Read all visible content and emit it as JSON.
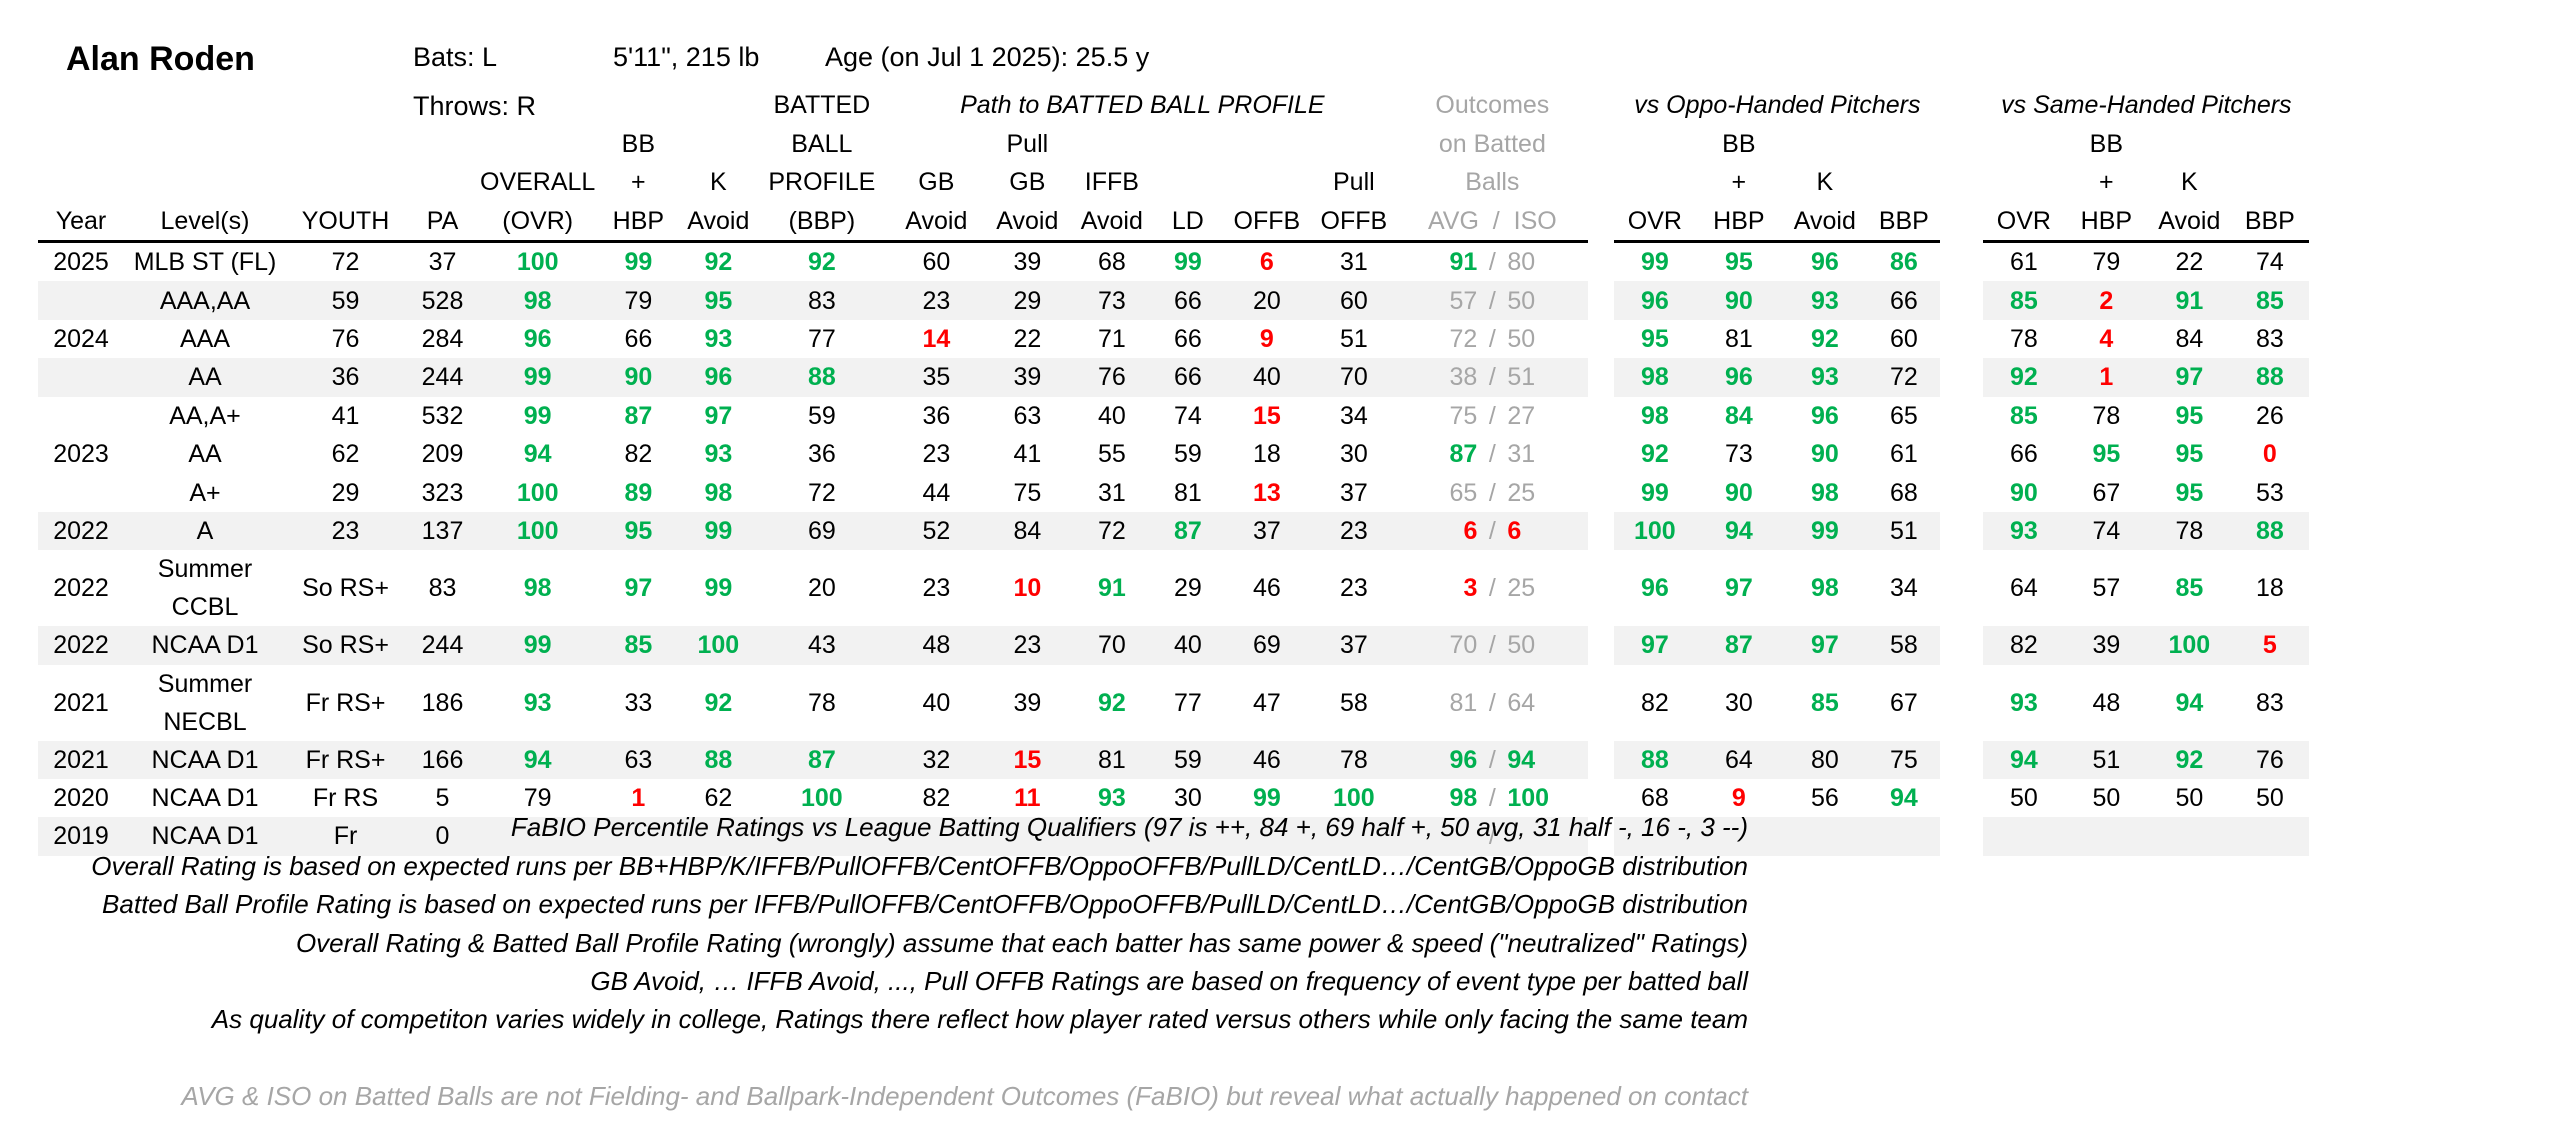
{
  "player": {
    "name": "Alan Roden",
    "bats": "Bats: L",
    "throws": "Throws: R",
    "height_weight": "5'11\", 215 lb",
    "age": "Age (on Jul 1 2025): 25.5 y"
  },
  "group_headers": {
    "path": "Path to BATTED BALL PROFILE",
    "outcomes_1": "Outcomes",
    "outcomes_2": "on Batted",
    "outcomes_3": "Balls",
    "oppo": "vs Oppo-Handed Pitchers",
    "same": "vs Same-Handed Pitchers"
  },
  "column_headers": {
    "year": "Year",
    "levels": "Level(s)",
    "youth": "YOUTH",
    "pa": "PA",
    "overall_1": "OVERALL",
    "overall_2": "(OVR)",
    "bb_1": "BB",
    "bb_2": "+",
    "bb_3": "HBP",
    "k_1": "K",
    "k_2": "Avoid",
    "bbp_1": "BATTED",
    "bbp_2": "BALL",
    "bbp_3": "PROFILE",
    "bbp_4": "(BBP)",
    "gb_1": "GB",
    "gb_2": "Avoid",
    "pullgb_1": "Pull",
    "pullgb_2": "GB",
    "pullgb_3": "Avoid",
    "iffb_1": "IFFB",
    "iffb_2": "Avoid",
    "ld": "LD",
    "offb": "OFFB",
    "pulloffb_1": "Pull",
    "pulloffb_2": "OFFB",
    "avgiso": "AVG  /  ISO",
    "ovr": "OVR",
    "hbp": "HBP",
    "kavoid": "Avoid",
    "bbp": "BBP"
  },
  "rows": [
    {
      "year": "2025",
      "level": "MLB ST (FL)",
      "youth": "72",
      "pa": "37",
      "ovr": [
        "100",
        "g"
      ],
      "bb": [
        "99",
        "g"
      ],
      "k": [
        "92",
        "g"
      ],
      "bbp": [
        "92",
        "g"
      ],
      "gb": [
        "60",
        "n"
      ],
      "pgb": [
        "39",
        "n"
      ],
      "iffb": [
        "68",
        "n"
      ],
      "ld": [
        "99",
        "g"
      ],
      "offb": [
        "6",
        "r"
      ],
      "poffb": [
        "31",
        "n"
      ],
      "avg": [
        "91",
        "g"
      ],
      "iso": [
        "80",
        "gr"
      ],
      "o": [
        [
          "99",
          "g"
        ],
        [
          "95",
          "g"
        ],
        [
          "96",
          "g"
        ],
        [
          "86",
          "g"
        ]
      ],
      "s": [
        [
          "61",
          "n"
        ],
        [
          "79",
          "n"
        ],
        [
          "22",
          "n"
        ],
        [
          "74",
          "n"
        ]
      ],
      "shade": false
    },
    {
      "year": "",
      "level": "AAA,AA",
      "youth": "59",
      "pa": "528",
      "ovr": [
        "98",
        "g"
      ],
      "bb": [
        "79",
        "n"
      ],
      "k": [
        "95",
        "g"
      ],
      "bbp": [
        "83",
        "n"
      ],
      "gb": [
        "23",
        "n"
      ],
      "pgb": [
        "29",
        "n"
      ],
      "iffb": [
        "73",
        "n"
      ],
      "ld": [
        "66",
        "n"
      ],
      "offb": [
        "20",
        "n"
      ],
      "poffb": [
        "60",
        "n"
      ],
      "avg": [
        "57",
        "gr"
      ],
      "iso": [
        "50",
        "gr"
      ],
      "o": [
        [
          "96",
          "g"
        ],
        [
          "90",
          "g"
        ],
        [
          "93",
          "g"
        ],
        [
          "66",
          "n"
        ]
      ],
      "s": [
        [
          "85",
          "g"
        ],
        [
          "2",
          "r"
        ],
        [
          "91",
          "g"
        ],
        [
          "85",
          "g"
        ]
      ],
      "shade": true
    },
    {
      "year": "2024",
      "level": "AAA",
      "youth": "76",
      "pa": "284",
      "ovr": [
        "96",
        "g"
      ],
      "bb": [
        "66",
        "n"
      ],
      "k": [
        "93",
        "g"
      ],
      "bbp": [
        "77",
        "n"
      ],
      "gb": [
        "14",
        "r"
      ],
      "pgb": [
        "22",
        "n"
      ],
      "iffb": [
        "71",
        "n"
      ],
      "ld": [
        "66",
        "n"
      ],
      "offb": [
        "9",
        "r"
      ],
      "poffb": [
        "51",
        "n"
      ],
      "avg": [
        "72",
        "gr"
      ],
      "iso": [
        "50",
        "gr"
      ],
      "o": [
        [
          "95",
          "g"
        ],
        [
          "81",
          "n"
        ],
        [
          "92",
          "g"
        ],
        [
          "60",
          "n"
        ]
      ],
      "s": [
        [
          "78",
          "n"
        ],
        [
          "4",
          "r"
        ],
        [
          "84",
          "n"
        ],
        [
          "83",
          "n"
        ]
      ],
      "shade": false
    },
    {
      "year": "",
      "level": "AA",
      "youth": "36",
      "pa": "244",
      "ovr": [
        "99",
        "g"
      ],
      "bb": [
        "90",
        "g"
      ],
      "k": [
        "96",
        "g"
      ],
      "bbp": [
        "88",
        "g"
      ],
      "gb": [
        "35",
        "n"
      ],
      "pgb": [
        "39",
        "n"
      ],
      "iffb": [
        "76",
        "n"
      ],
      "ld": [
        "66",
        "n"
      ],
      "offb": [
        "40",
        "n"
      ],
      "poffb": [
        "70",
        "n"
      ],
      "avg": [
        "38",
        "gr"
      ],
      "iso": [
        "51",
        "gr"
      ],
      "o": [
        [
          "98",
          "g"
        ],
        [
          "96",
          "g"
        ],
        [
          "93",
          "g"
        ],
        [
          "72",
          "n"
        ]
      ],
      "s": [
        [
          "92",
          "g"
        ],
        [
          "1",
          "r"
        ],
        [
          "97",
          "g"
        ],
        [
          "88",
          "g"
        ]
      ],
      "shade": true
    },
    {
      "year": "",
      "level": "AA,A+",
      "youth": "41",
      "pa": "532",
      "ovr": [
        "99",
        "g"
      ],
      "bb": [
        "87",
        "g"
      ],
      "k": [
        "97",
        "g"
      ],
      "bbp": [
        "59",
        "n"
      ],
      "gb": [
        "36",
        "n"
      ],
      "pgb": [
        "63",
        "n"
      ],
      "iffb": [
        "40",
        "n"
      ],
      "ld": [
        "74",
        "n"
      ],
      "offb": [
        "15",
        "r"
      ],
      "poffb": [
        "34",
        "n"
      ],
      "avg": [
        "75",
        "gr"
      ],
      "iso": [
        "27",
        "gr"
      ],
      "o": [
        [
          "98",
          "g"
        ],
        [
          "84",
          "g"
        ],
        [
          "96",
          "g"
        ],
        [
          "65",
          "n"
        ]
      ],
      "s": [
        [
          "85",
          "g"
        ],
        [
          "78",
          "n"
        ],
        [
          "95",
          "g"
        ],
        [
          "26",
          "n"
        ]
      ],
      "shade": false
    },
    {
      "year": "2023",
      "level": "AA",
      "youth": "62",
      "pa": "209",
      "ovr": [
        "94",
        "g"
      ],
      "bb": [
        "82",
        "n"
      ],
      "k": [
        "93",
        "g"
      ],
      "bbp": [
        "36",
        "n"
      ],
      "gb": [
        "23",
        "n"
      ],
      "pgb": [
        "41",
        "n"
      ],
      "iffb": [
        "55",
        "n"
      ],
      "ld": [
        "59",
        "n"
      ],
      "offb": [
        "18",
        "n"
      ],
      "poffb": [
        "30",
        "n"
      ],
      "avg": [
        "87",
        "g"
      ],
      "iso": [
        "31",
        "gr"
      ],
      "o": [
        [
          "92",
          "g"
        ],
        [
          "73",
          "n"
        ],
        [
          "90",
          "g"
        ],
        [
          "61",
          "n"
        ]
      ],
      "s": [
        [
          "66",
          "n"
        ],
        [
          "95",
          "g"
        ],
        [
          "95",
          "g"
        ],
        [
          "0",
          "r"
        ]
      ],
      "shade": false
    },
    {
      "year": "",
      "level": "A+",
      "youth": "29",
      "pa": "323",
      "ovr": [
        "100",
        "g"
      ],
      "bb": [
        "89",
        "g"
      ],
      "k": [
        "98",
        "g"
      ],
      "bbp": [
        "72",
        "n"
      ],
      "gb": [
        "44",
        "n"
      ],
      "pgb": [
        "75",
        "n"
      ],
      "iffb": [
        "31",
        "n"
      ],
      "ld": [
        "81",
        "n"
      ],
      "offb": [
        "13",
        "r"
      ],
      "poffb": [
        "37",
        "n"
      ],
      "avg": [
        "65",
        "gr"
      ],
      "iso": [
        "25",
        "gr"
      ],
      "o": [
        [
          "99",
          "g"
        ],
        [
          "90",
          "g"
        ],
        [
          "98",
          "g"
        ],
        [
          "68",
          "n"
        ]
      ],
      "s": [
        [
          "90",
          "g"
        ],
        [
          "67",
          "n"
        ],
        [
          "95",
          "g"
        ],
        [
          "53",
          "n"
        ]
      ],
      "shade": false
    },
    {
      "year": "2022",
      "level": "A",
      "youth": "23",
      "pa": "137",
      "ovr": [
        "100",
        "g"
      ],
      "bb": [
        "95",
        "g"
      ],
      "k": [
        "99",
        "g"
      ],
      "bbp": [
        "69",
        "n"
      ],
      "gb": [
        "52",
        "n"
      ],
      "pgb": [
        "84",
        "n"
      ],
      "iffb": [
        "72",
        "n"
      ],
      "ld": [
        "87",
        "g"
      ],
      "offb": [
        "37",
        "n"
      ],
      "poffb": [
        "23",
        "n"
      ],
      "avg": [
        "6",
        "r"
      ],
      "iso": [
        "6",
        "r"
      ],
      "o": [
        [
          "100",
          "g"
        ],
        [
          "94",
          "g"
        ],
        [
          "99",
          "g"
        ],
        [
          "51",
          "n"
        ]
      ],
      "s": [
        [
          "93",
          "g"
        ],
        [
          "74",
          "n"
        ],
        [
          "78",
          "n"
        ],
        [
          "88",
          "g"
        ]
      ],
      "shade": true
    },
    {
      "year": "2022",
      "level": "Summer CCBL",
      "youth": "So RS+",
      "pa": "83",
      "ovr": [
        "98",
        "g"
      ],
      "bb": [
        "97",
        "g"
      ],
      "k": [
        "99",
        "g"
      ],
      "bbp": [
        "20",
        "n"
      ],
      "gb": [
        "23",
        "n"
      ],
      "pgb": [
        "10",
        "r"
      ],
      "iffb": [
        "91",
        "g"
      ],
      "ld": [
        "29",
        "n"
      ],
      "offb": [
        "46",
        "n"
      ],
      "poffb": [
        "23",
        "n"
      ],
      "avg": [
        "3",
        "r"
      ],
      "iso": [
        "25",
        "gr"
      ],
      "o": [
        [
          "96",
          "g"
        ],
        [
          "97",
          "g"
        ],
        [
          "98",
          "g"
        ],
        [
          "34",
          "n"
        ]
      ],
      "s": [
        [
          "64",
          "n"
        ],
        [
          "57",
          "n"
        ],
        [
          "85",
          "g"
        ],
        [
          "18",
          "n"
        ]
      ],
      "shade": false
    },
    {
      "year": "2022",
      "level": "NCAA D1",
      "youth": "So RS+",
      "pa": "244",
      "ovr": [
        "99",
        "g"
      ],
      "bb": [
        "85",
        "g"
      ],
      "k": [
        "100",
        "g"
      ],
      "bbp": [
        "43",
        "n"
      ],
      "gb": [
        "48",
        "n"
      ],
      "pgb": [
        "23",
        "n"
      ],
      "iffb": [
        "70",
        "n"
      ],
      "ld": [
        "40",
        "n"
      ],
      "offb": [
        "69",
        "n"
      ],
      "poffb": [
        "37",
        "n"
      ],
      "avg": [
        "70",
        "gr"
      ],
      "iso": [
        "50",
        "gr"
      ],
      "o": [
        [
          "97",
          "g"
        ],
        [
          "87",
          "g"
        ],
        [
          "97",
          "g"
        ],
        [
          "58",
          "n"
        ]
      ],
      "s": [
        [
          "82",
          "n"
        ],
        [
          "39",
          "n"
        ],
        [
          "100",
          "g"
        ],
        [
          "5",
          "r"
        ]
      ],
      "shade": true
    },
    {
      "year": "2021",
      "level": "Summer NECBL",
      "youth": "Fr RS+",
      "pa": "186",
      "ovr": [
        "93",
        "g"
      ],
      "bb": [
        "33",
        "n"
      ],
      "k": [
        "92",
        "g"
      ],
      "bbp": [
        "78",
        "n"
      ],
      "gb": [
        "40",
        "n"
      ],
      "pgb": [
        "39",
        "n"
      ],
      "iffb": [
        "92",
        "g"
      ],
      "ld": [
        "77",
        "n"
      ],
      "offb": [
        "47",
        "n"
      ],
      "poffb": [
        "58",
        "n"
      ],
      "avg": [
        "81",
        "gr"
      ],
      "iso": [
        "64",
        "gr"
      ],
      "o": [
        [
          "82",
          "n"
        ],
        [
          "30",
          "n"
        ],
        [
          "85",
          "g"
        ],
        [
          "67",
          "n"
        ]
      ],
      "s": [
        [
          "93",
          "g"
        ],
        [
          "48",
          "n"
        ],
        [
          "94",
          "g"
        ],
        [
          "83",
          "n"
        ]
      ],
      "shade": false
    },
    {
      "year": "2021",
      "level": "NCAA D1",
      "youth": "Fr RS+",
      "pa": "166",
      "ovr": [
        "94",
        "g"
      ],
      "bb": [
        "63",
        "n"
      ],
      "k": [
        "88",
        "g"
      ],
      "bbp": [
        "87",
        "g"
      ],
      "gb": [
        "32",
        "n"
      ],
      "pgb": [
        "15",
        "r"
      ],
      "iffb": [
        "81",
        "n"
      ],
      "ld": [
        "59",
        "n"
      ],
      "offb": [
        "46",
        "n"
      ],
      "poffb": [
        "78",
        "n"
      ],
      "avg": [
        "96",
        "g"
      ],
      "iso": [
        "94",
        "g"
      ],
      "o": [
        [
          "88",
          "g"
        ],
        [
          "64",
          "n"
        ],
        [
          "80",
          "n"
        ],
        [
          "75",
          "n"
        ]
      ],
      "s": [
        [
          "94",
          "g"
        ],
        [
          "51",
          "n"
        ],
        [
          "92",
          "g"
        ],
        [
          "76",
          "n"
        ]
      ],
      "shade": true
    },
    {
      "year": "2020",
      "level": "NCAA D1",
      "youth": "Fr RS",
      "pa": "5",
      "ovr": [
        "79",
        "n"
      ],
      "bb": [
        "1",
        "r"
      ],
      "k": [
        "62",
        "n"
      ],
      "bbp": [
        "100",
        "g"
      ],
      "gb": [
        "82",
        "n"
      ],
      "pgb": [
        "11",
        "r"
      ],
      "iffb": [
        "93",
        "g"
      ],
      "ld": [
        "30",
        "n"
      ],
      "offb": [
        "99",
        "g"
      ],
      "poffb": [
        "100",
        "g"
      ],
      "avg": [
        "98",
        "g"
      ],
      "iso": [
        "100",
        "g"
      ],
      "o": [
        [
          "68",
          "n"
        ],
        [
          "9",
          "r"
        ],
        [
          "56",
          "n"
        ],
        [
          "94",
          "g"
        ]
      ],
      "s": [
        [
          "50",
          "n"
        ],
        [
          "50",
          "n"
        ],
        [
          "50",
          "n"
        ],
        [
          "50",
          "n"
        ]
      ],
      "shade": false
    },
    {
      "year": "2019",
      "level": "NCAA D1",
      "youth": "Fr",
      "pa": "0",
      "ovr": [
        "",
        ""
      ],
      "bb": [
        "",
        ""
      ],
      "k": [
        "",
        ""
      ],
      "bbp": [
        "",
        ""
      ],
      "gb": [
        "",
        ""
      ],
      "pgb": [
        "",
        ""
      ],
      "iffb": [
        "",
        ""
      ],
      "ld": [
        "",
        ""
      ],
      "offb": [
        "",
        ""
      ],
      "poffb": [
        "",
        ""
      ],
      "avg": [
        "",
        ""
      ],
      "iso": [
        "",
        ""
      ],
      "o": [
        [
          "",
          ""
        ],
        [
          "",
          ""
        ],
        [
          "",
          ""
        ],
        [
          "",
          ""
        ]
      ],
      "s": [
        [
          "",
          ""
        ],
        [
          "",
          ""
        ],
        [
          "",
          ""
        ],
        [
          "",
          ""
        ]
      ],
      "shade": true
    }
  ],
  "notes": [
    "FaBIO Percentile Ratings vs League Batting Qualifiers (97 is ++, 84 +, 69 half +, 50 avg, 31 half -, 16 -, 3 --)",
    "Overall Rating is based on expected runs per BB+HBP/K/IFFB/PullOFFB/CentOFFB/OppoOFFB/PullLD/CentLD…/CentGB/OppoGB distribution",
    "Batted Ball Profile Rating is based on expected runs per IFFB/PullOFFB/CentOFFB/OppoOFFB/PullLD/CentLD…/CentGB/OppoGB distribution",
    "Overall Rating & Batted Ball Profile Rating (wrongly) assume that each batter has same power & speed (\"neutralized\" Ratings)",
    "GB Avoid, … IFFB Avoid, ..., Pull OFFB Ratings are based on frequency of event type per batted ball",
    "As quality of competiton varies widely in college, Ratings there reflect how player rated versus others while only facing the same team"
  ],
  "footnote": "AVG & ISO on Batted Balls are not Fielding- and Ballpark-Independent Outcomes (FaBIO) but reveal what actually happened on contact",
  "colors": {
    "good": "#00b050",
    "bad": "#ff0000",
    "muted": "#a6a6a6",
    "shade": "#f2f2f2"
  }
}
